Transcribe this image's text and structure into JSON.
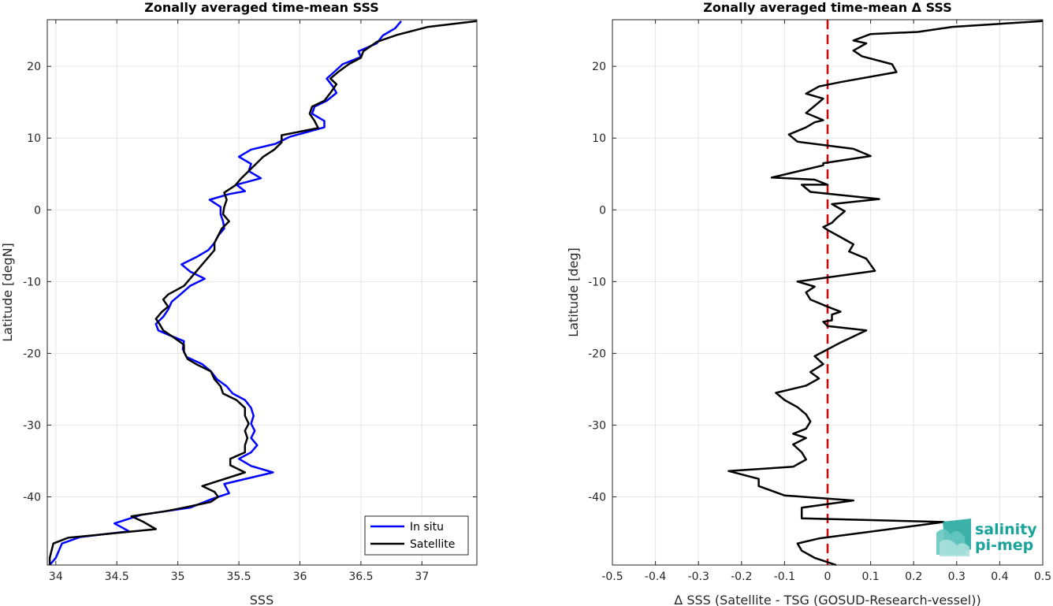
{
  "chart_data": [
    {
      "type": "line",
      "title": "Zonally averaged time-mean SSS",
      "xlabel": "SSS",
      "ylabel": "Latitude [degN]",
      "xlim": [
        33.93,
        37.45
      ],
      "ylim": [
        -49.5,
        26.5
      ],
      "xticks": [
        "34",
        "34.5",
        "35",
        "35.5",
        "36",
        "36.5",
        "37"
      ],
      "yticks": [
        "20",
        "10",
        "0",
        "-10",
        "-20",
        "-30",
        "-40"
      ],
      "grid": true,
      "legend_position": "bottom-right",
      "colors": {
        "In situ": "#0000ff",
        "Satellite": "#000000"
      },
      "series": [
        {
          "name": "In situ",
          "points": [
            [
              33.95,
              -49.5
            ],
            [
              34.0,
              -48.5
            ],
            [
              34.05,
              -46.5
            ],
            [
              34.2,
              -45.6
            ],
            [
              34.6,
              -44.8
            ],
            [
              34.48,
              -43.7
            ],
            [
              34.7,
              -42.5
            ],
            [
              35.1,
              -41.5
            ],
            [
              35.28,
              -40.3
            ],
            [
              35.42,
              -39.5
            ],
            [
              35.38,
              -38.2
            ],
            [
              35.78,
              -36.6
            ],
            [
              35.6,
              -35.7
            ],
            [
              35.5,
              -34.7
            ],
            [
              35.6,
              -33.8
            ],
            [
              35.65,
              -32.8
            ],
            [
              35.6,
              -31.8
            ],
            [
              35.63,
              -30.8
            ],
            [
              35.6,
              -29.8
            ],
            [
              35.62,
              -28.7
            ],
            [
              35.6,
              -27.6
            ],
            [
              35.55,
              -26.5
            ],
            [
              35.45,
              -25.6
            ],
            [
              35.4,
              -24.6
            ],
            [
              35.32,
              -23.6
            ],
            [
              35.27,
              -22.5
            ],
            [
              35.2,
              -21.5
            ],
            [
              35.07,
              -20.5
            ],
            [
              35.04,
              -19.4
            ],
            [
              35.05,
              -18.3
            ],
            [
              34.92,
              -17.4
            ],
            [
              34.84,
              -16.8
            ],
            [
              34.82,
              -15.9
            ],
            [
              34.88,
              -14.9
            ],
            [
              34.92,
              -13.9
            ],
            [
              34.95,
              -12.8
            ],
            [
              35.02,
              -11.8
            ],
            [
              35.1,
              -10.6
            ],
            [
              35.22,
              -9.6
            ],
            [
              35.1,
              -8.6
            ],
            [
              35.03,
              -7.6
            ],
            [
              35.15,
              -6.6
            ],
            [
              35.25,
              -5.6
            ],
            [
              35.3,
              -4.6
            ],
            [
              35.33,
              -3.6
            ],
            [
              35.38,
              -2.6
            ],
            [
              35.37,
              -1.6
            ],
            [
              35.35,
              -0.6
            ],
            [
              35.35,
              0.4
            ],
            [
              35.26,
              1.4
            ],
            [
              35.42,
              2.2
            ],
            [
              35.55,
              2.6
            ],
            [
              35.48,
              3.5
            ],
            [
              35.68,
              4.4
            ],
            [
              35.58,
              5.4
            ],
            [
              35.6,
              6.4
            ],
            [
              35.5,
              7.4
            ],
            [
              35.6,
              8.4
            ],
            [
              35.8,
              9.2
            ],
            [
              35.92,
              10.2
            ],
            [
              36.2,
              11.5
            ],
            [
              36.2,
              12.4
            ],
            [
              36.1,
              13.4
            ],
            [
              36.12,
              14.4
            ],
            [
              36.22,
              15.2
            ],
            [
              36.3,
              16.3
            ],
            [
              36.27,
              17.2
            ],
            [
              36.22,
              18.3
            ],
            [
              36.28,
              19.2
            ],
            [
              36.35,
              20.3
            ],
            [
              36.5,
              21.3
            ],
            [
              36.48,
              22.1
            ],
            [
              36.63,
              23.2
            ],
            [
              36.68,
              24.3
            ],
            [
              36.78,
              25.3
            ],
            [
              36.83,
              26.3
            ]
          ]
        },
        {
          "name": "Satellite",
          "points": [
            [
              33.95,
              -49.5
            ],
            [
              33.95,
              -48.5
            ],
            [
              33.98,
              -46.5
            ],
            [
              34.1,
              -45.7
            ],
            [
              34.82,
              -44.5
            ],
            [
              34.72,
              -43.5
            ],
            [
              34.62,
              -42.7
            ],
            [
              34.9,
              -42.0
            ],
            [
              35.05,
              -41.5
            ],
            [
              35.27,
              -40.7
            ],
            [
              35.33,
              -40.0
            ],
            [
              35.3,
              -39.3
            ],
            [
              35.2,
              -38.5
            ],
            [
              35.55,
              -36.6
            ],
            [
              35.43,
              -35.6
            ],
            [
              35.43,
              -34.7
            ],
            [
              35.55,
              -33.8
            ],
            [
              35.55,
              -32.8
            ],
            [
              35.57,
              -31.8
            ],
            [
              35.55,
              -30.8
            ],
            [
              35.58,
              -29.8
            ],
            [
              35.55,
              -28.7
            ],
            [
              35.55,
              -27.6
            ],
            [
              35.48,
              -26.5
            ],
            [
              35.37,
              -25.6
            ],
            [
              35.35,
              -24.6
            ],
            [
              35.3,
              -23.6
            ],
            [
              35.27,
              -22.5
            ],
            [
              35.15,
              -21.5
            ],
            [
              35.08,
              -20.8
            ],
            [
              35.05,
              -19.8
            ],
            [
              35.05,
              -18.8
            ],
            [
              34.95,
              -17.6
            ],
            [
              34.88,
              -16.8
            ],
            [
              34.85,
              -15.9
            ],
            [
              34.82,
              -15.2
            ],
            [
              34.87,
              -14.2
            ],
            [
              34.92,
              -13.5
            ],
            [
              34.88,
              -12.5
            ],
            [
              34.92,
              -11.8
            ],
            [
              35.05,
              -10.6
            ],
            [
              35.1,
              -9.6
            ],
            [
              35.15,
              -8.6
            ],
            [
              35.2,
              -7.6
            ],
            [
              35.25,
              -6.6
            ],
            [
              35.3,
              -5.6
            ],
            [
              35.3,
              -4.6
            ],
            [
              35.33,
              -3.6
            ],
            [
              35.36,
              -2.6
            ],
            [
              35.42,
              -1.6
            ],
            [
              35.37,
              -0.6
            ],
            [
              35.38,
              0.4
            ],
            [
              35.4,
              1.4
            ],
            [
              35.38,
              2.4
            ],
            [
              35.47,
              3.4
            ],
            [
              35.52,
              4.4
            ],
            [
              35.58,
              5.4
            ],
            [
              35.64,
              6.4
            ],
            [
              35.7,
              7.4
            ],
            [
              35.79,
              8.4
            ],
            [
              35.85,
              9.4
            ],
            [
              35.85,
              10.4
            ],
            [
              36.15,
              11.4
            ],
            [
              36.12,
              12.4
            ],
            [
              36.08,
              13.4
            ],
            [
              36.1,
              14.4
            ],
            [
              36.2,
              15.2
            ],
            [
              36.25,
              16.3
            ],
            [
              36.3,
              17.5
            ],
            [
              36.25,
              18.3
            ],
            [
              36.32,
              19.3
            ],
            [
              36.4,
              20.3
            ],
            [
              36.5,
              21.2
            ],
            [
              36.52,
              22.1
            ],
            [
              36.63,
              23.4
            ],
            [
              36.8,
              24.4
            ],
            [
              37.05,
              25.5
            ],
            [
              37.45,
              26.3
            ]
          ]
        }
      ]
    },
    {
      "type": "line",
      "title": "Zonally averaged time-mean Δ SSS",
      "xlabel": "Δ SSS (Satellite - TSG (GOSUD-Research-vessel))",
      "ylabel": "Latitude [deg]",
      "xlim": [
        -0.5,
        0.5
      ],
      "ylim": [
        -49.5,
        26.5
      ],
      "xticks": [
        "-0.5",
        "-0.4",
        "-0.3",
        "-0.2",
        "-0.1",
        "0",
        "0.1",
        "0.2",
        "0.3",
        "0.4",
        "0.5"
      ],
      "yticks": [
        "20",
        "10",
        "0",
        "-10",
        "-20",
        "-30",
        "-40"
      ],
      "grid": true,
      "colors": {
        "delta": "#000000",
        "zero_line": "#e00000"
      },
      "zero_line": {
        "x": 0,
        "style": "dashed"
      },
      "series": [
        {
          "points": [
            [
              0.02,
              -49.5
            ],
            [
              -0.03,
              -48.5
            ],
            [
              -0.06,
              -47.5
            ],
            [
              -0.07,
              -46.5
            ],
            [
              -0.02,
              -45.8
            ],
            [
              0.27,
              -43.5
            ],
            [
              -0.06,
              -43.0
            ],
            [
              -0.06,
              -41.5
            ],
            [
              0.06,
              -40.5
            ],
            [
              -0.1,
              -39.8
            ],
            [
              -0.16,
              -38.5
            ],
            [
              -0.16,
              -37.5
            ],
            [
              -0.23,
              -36.4
            ],
            [
              -0.08,
              -35.8
            ],
            [
              -0.05,
              -34.8
            ],
            [
              -0.06,
              -33.8
            ],
            [
              -0.08,
              -32.7
            ],
            [
              -0.05,
              -31.8
            ],
            [
              -0.08,
              -31.2
            ],
            [
              -0.05,
              -30.5
            ],
            [
              -0.04,
              -29.5
            ],
            [
              -0.05,
              -28.5
            ],
            [
              -0.07,
              -27.5
            ],
            [
              -0.1,
              -26.5
            ],
            [
              -0.12,
              -25.5
            ],
            [
              -0.05,
              -24.5
            ],
            [
              -0.02,
              -23.5
            ],
            [
              -0.04,
              -22.6
            ],
            [
              -0.01,
              -21.5
            ],
            [
              -0.03,
              -20.4
            ],
            [
              0.03,
              -18.5
            ],
            [
              0.09,
              -16.8
            ],
            [
              0.0,
              -16.2
            ],
            [
              -0.01,
              -15.6
            ],
            [
              0.01,
              -15.4
            ],
            [
              0.01,
              -14.6
            ],
            [
              0.03,
              -14.2
            ],
            [
              0.0,
              -13.5
            ],
            [
              -0.04,
              -12.5
            ],
            [
              -0.05,
              -11.5
            ],
            [
              -0.03,
              -10.7
            ],
            [
              -0.07,
              -10.0
            ],
            [
              0.11,
              -8.5
            ],
            [
              0.09,
              -6.8
            ],
            [
              0.05,
              -5.8
            ],
            [
              0.06,
              -4.8
            ],
            [
              0.03,
              -3.8
            ],
            [
              0.0,
              -2.8
            ],
            [
              -0.01,
              -2.4
            ],
            [
              0.01,
              -1.8
            ],
            [
              0.02,
              -1.2
            ],
            [
              0.04,
              -0.2
            ],
            [
              0.01,
              0.8
            ],
            [
              0.12,
              1.5
            ],
            [
              -0.04,
              2.5
            ],
            [
              -0.06,
              3.5
            ],
            [
              0.0,
              3.5
            ],
            [
              -0.03,
              4.2
            ],
            [
              -0.13,
              4.5
            ],
            [
              -0.01,
              6.2
            ],
            [
              -0.01,
              6.5
            ],
            [
              0.1,
              7.5
            ],
            [
              0.06,
              8.5
            ],
            [
              -0.07,
              9.5
            ],
            [
              -0.09,
              10.5
            ],
            [
              -0.05,
              11.5
            ],
            [
              -0.03,
              12.2
            ],
            [
              -0.01,
              12.5
            ],
            [
              -0.05,
              13.5
            ],
            [
              -0.01,
              15.5
            ],
            [
              -0.05,
              16.2
            ],
            [
              -0.02,
              17.2
            ],
            [
              0.03,
              17.8
            ],
            [
              0.16,
              19.2
            ],
            [
              0.15,
              20.3
            ],
            [
              0.08,
              21.4
            ],
            [
              0.06,
              22.2
            ],
            [
              0.09,
              23.2
            ],
            [
              0.06,
              23.6
            ],
            [
              0.1,
              24.5
            ],
            [
              0.21,
              24.8
            ],
            [
              0.29,
              25.5
            ],
            [
              0.5,
              26.3
            ]
          ]
        }
      ]
    }
  ],
  "legend": {
    "items": [
      {
        "label": "In situ",
        "color": "#0000ff"
      },
      {
        "label": "Satellite",
        "color": "#000000"
      }
    ]
  },
  "logo": {
    "line1": "salinity",
    "line2": "pi-mep",
    "color": "#1aa39a"
  }
}
